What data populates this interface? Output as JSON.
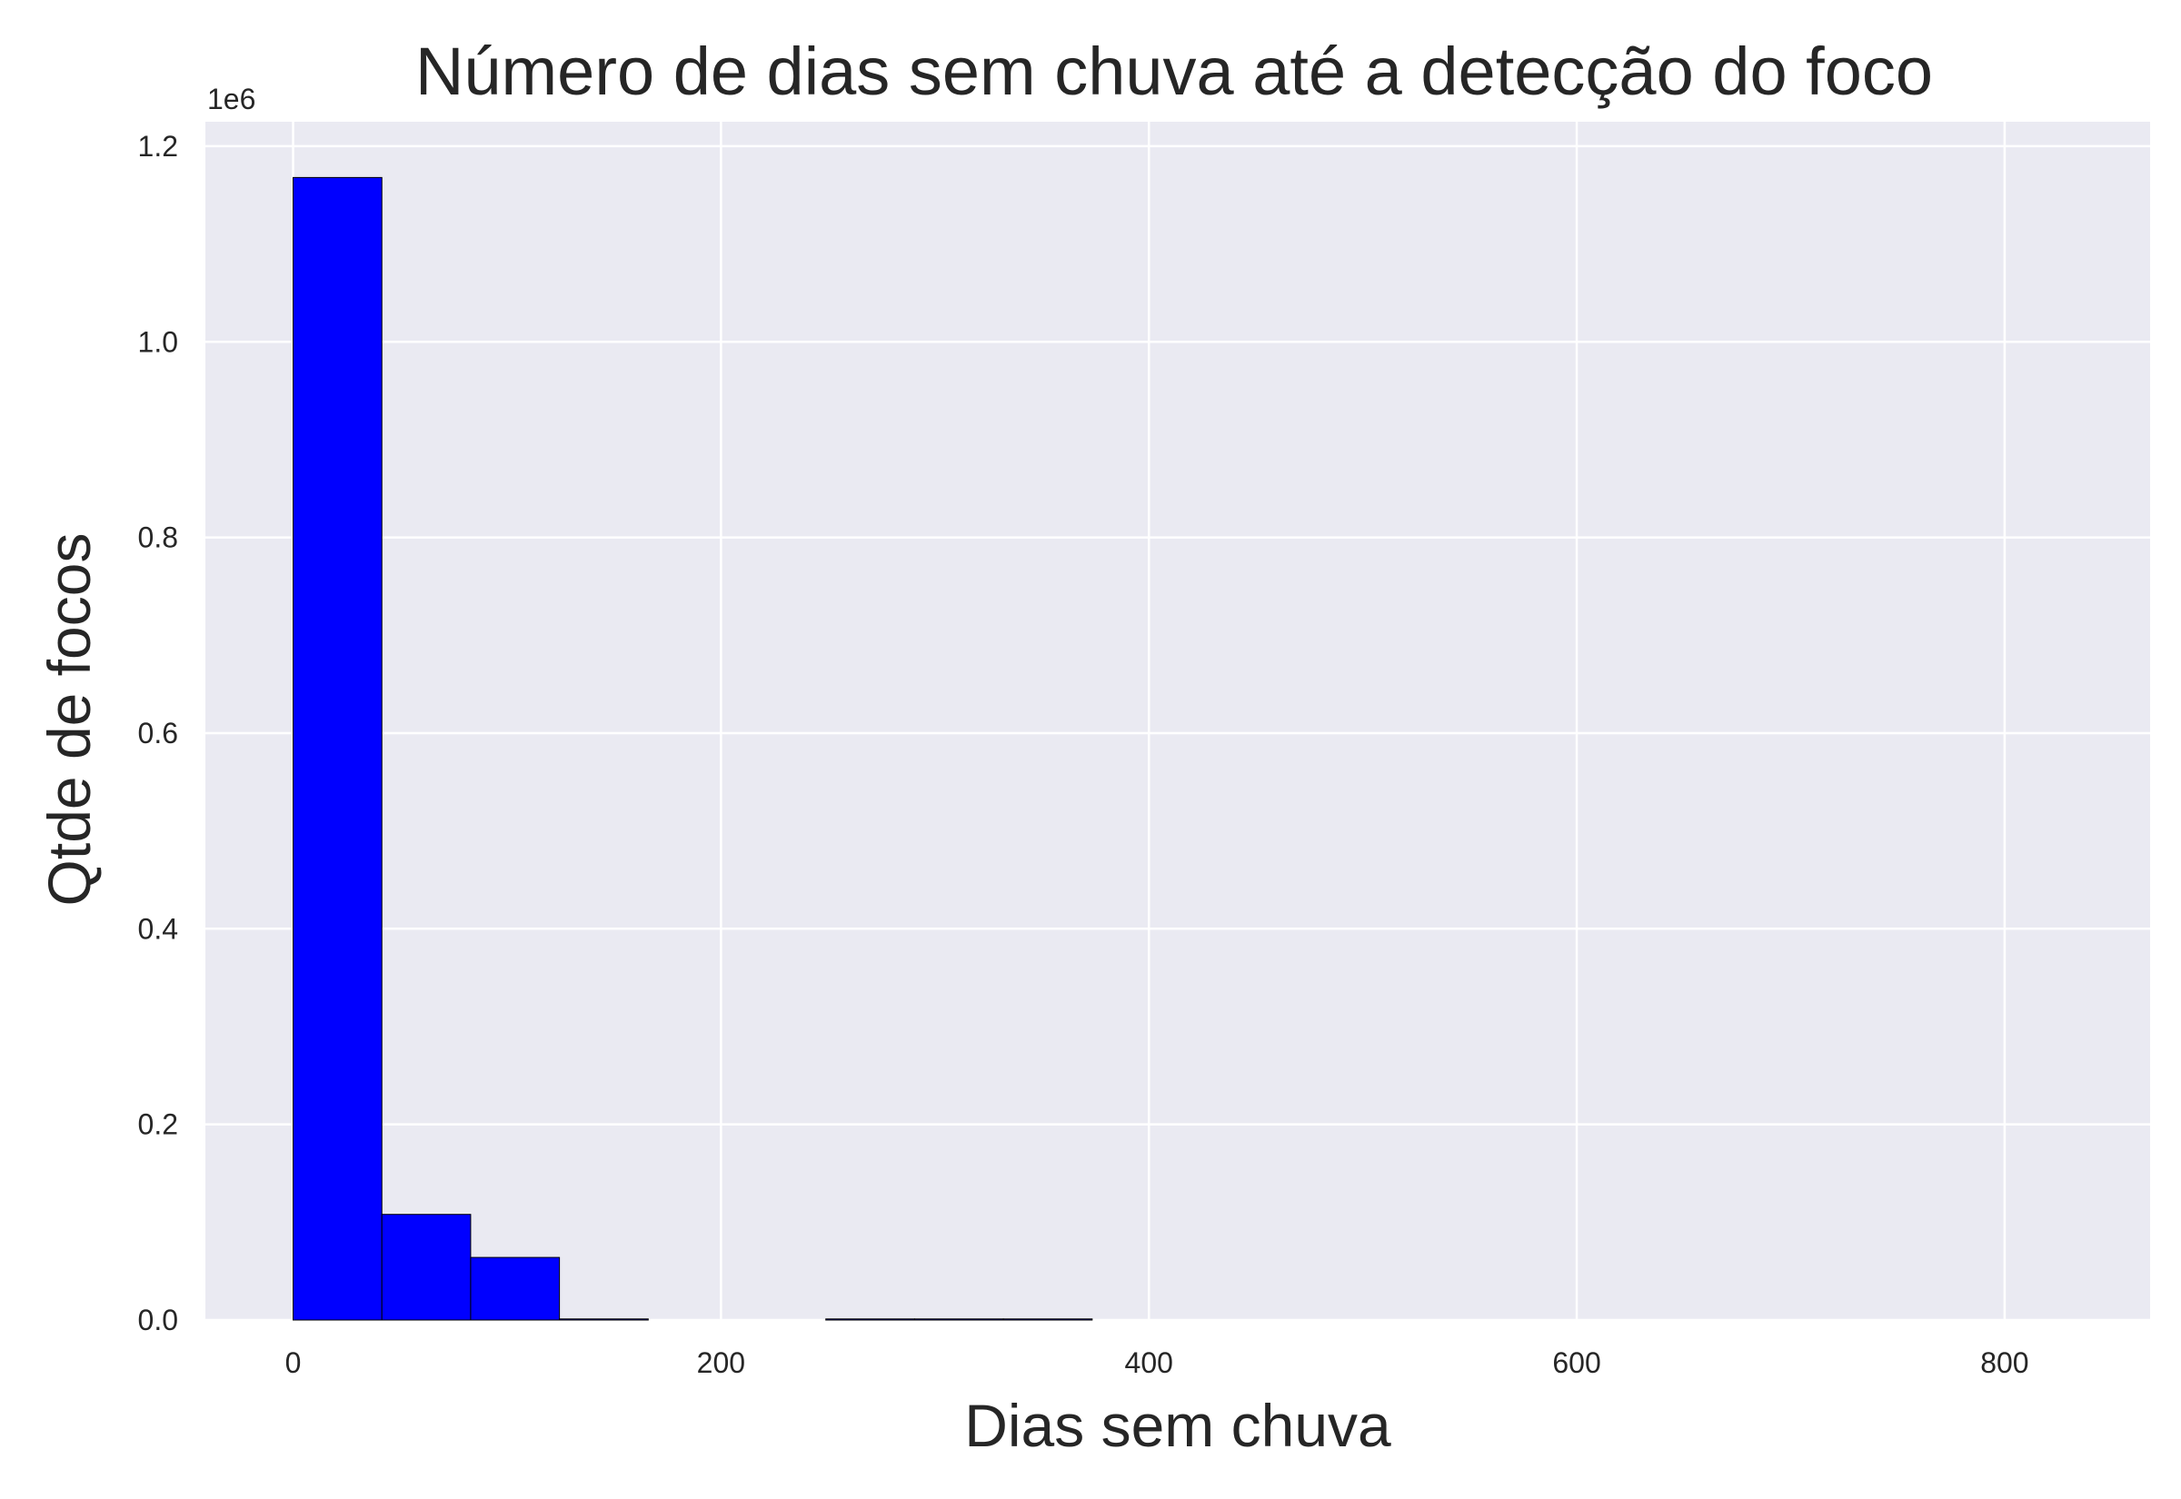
{
  "chart_data": {
    "type": "bar",
    "title": "Número de dias sem chuva até a detecção do foco",
    "xlabel": "Dias sem chuva",
    "ylabel": "Qtde de focos",
    "y_offset_label": "1e6",
    "xlim": [
      -41,
      868
    ],
    "ylim": [
      0,
      1.225
    ],
    "x_ticks": [
      0,
      200,
      400,
      600,
      800
    ],
    "x_tick_labels": [
      "0",
      "200",
      "400",
      "600",
      "800"
    ],
    "y_ticks": [
      0.0,
      0.2,
      0.4,
      0.6,
      0.8,
      1.0,
      1.2
    ],
    "y_tick_labels": [
      "0.0",
      "0.2",
      "0.4",
      "0.6",
      "0.8",
      "1.0",
      "1.2"
    ],
    "bins": [
      {
        "x0": 0,
        "x1": 41.5,
        "value": 1.168
      },
      {
        "x0": 41.5,
        "x1": 83,
        "value": 0.108
      },
      {
        "x0": 83,
        "x1": 124.5,
        "value": 0.064
      },
      {
        "x0": 124.5,
        "x1": 166,
        "value": 0.001
      },
      {
        "x0": 166,
        "x1": 207.5,
        "value": 0
      },
      {
        "x0": 207.5,
        "x1": 249,
        "value": 0
      },
      {
        "x0": 249,
        "x1": 290.5,
        "value": 0.0005
      },
      {
        "x0": 290.5,
        "x1": 332,
        "value": 0.0005
      },
      {
        "x0": 332,
        "x1": 373.5,
        "value": 0.0005
      },
      {
        "x0": 373.5,
        "x1": 415,
        "value": 0
      },
      {
        "x0": 415,
        "x1": 456.5,
        "value": 0
      },
      {
        "x0": 456.5,
        "x1": 498,
        "value": 0
      },
      {
        "x0": 498,
        "x1": 539.5,
        "value": 0
      },
      {
        "x0": 539.5,
        "x1": 581,
        "value": 0
      },
      {
        "x0": 581,
        "x1": 622.5,
        "value": 0
      },
      {
        "x0": 622.5,
        "x1": 664,
        "value": 0
      },
      {
        "x0": 664,
        "x1": 705.5,
        "value": 0
      },
      {
        "x0": 705.5,
        "x1": 747,
        "value": 0
      },
      {
        "x0": 747,
        "x1": 788.5,
        "value": 0
      },
      {
        "x0": 788.5,
        "x1": 830,
        "value": 0
      }
    ],
    "bar_color": "#0000ff",
    "edge_color": "#000000",
    "background_color": "#eaeaf2",
    "grid": true,
    "grid_color": "#ffffff"
  }
}
